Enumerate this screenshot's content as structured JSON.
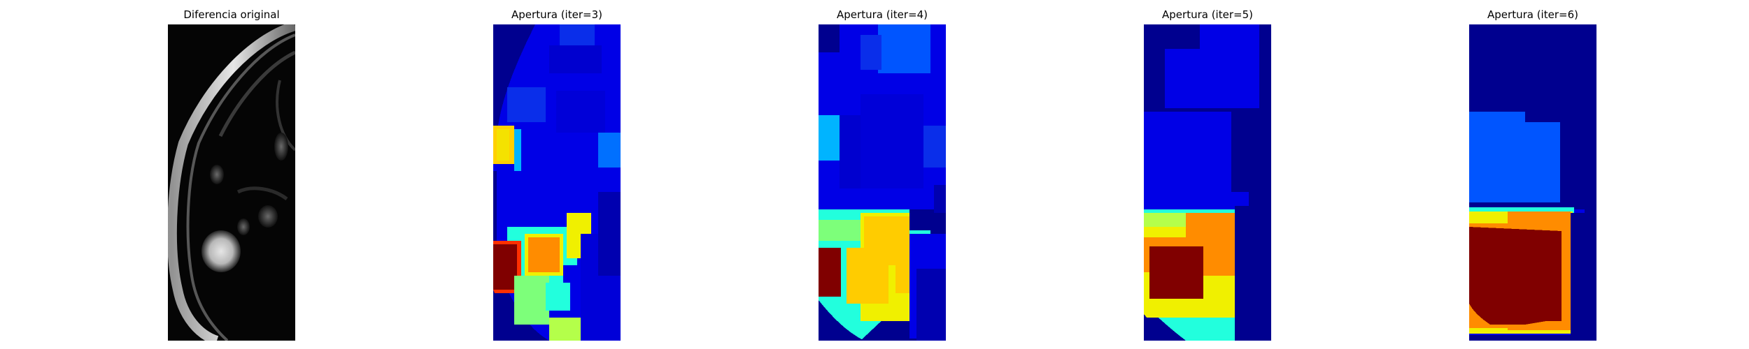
{
  "panels": [
    {
      "title": "Diferencia original",
      "kind": "grayscale"
    },
    {
      "title": "Apertura (iter=3)",
      "kind": "jet-iter3"
    },
    {
      "title": "Apertura (iter=4)",
      "kind": "jet-iter4"
    },
    {
      "title": "Apertura (iter=5)",
      "kind": "jet-iter5"
    },
    {
      "title": "Apertura (iter=6)",
      "kind": "jet-iter6"
    }
  ],
  "colors": {
    "jet_dark_blue": "#00008f",
    "jet_blue": "#0000e6",
    "jet_mid_blue": "#0a2eea",
    "jet_light_blue": "#0055ff",
    "jet_cyan": "#00b4ff",
    "jet_aqua": "#22ffdd",
    "jet_green": "#7dff7a",
    "jet_lime": "#b4ff4a",
    "jet_yellow": "#f0f000",
    "jet_gold": "#ffcc00",
    "jet_orange": "#ff8c00",
    "jet_dark_red": "#800000"
  }
}
